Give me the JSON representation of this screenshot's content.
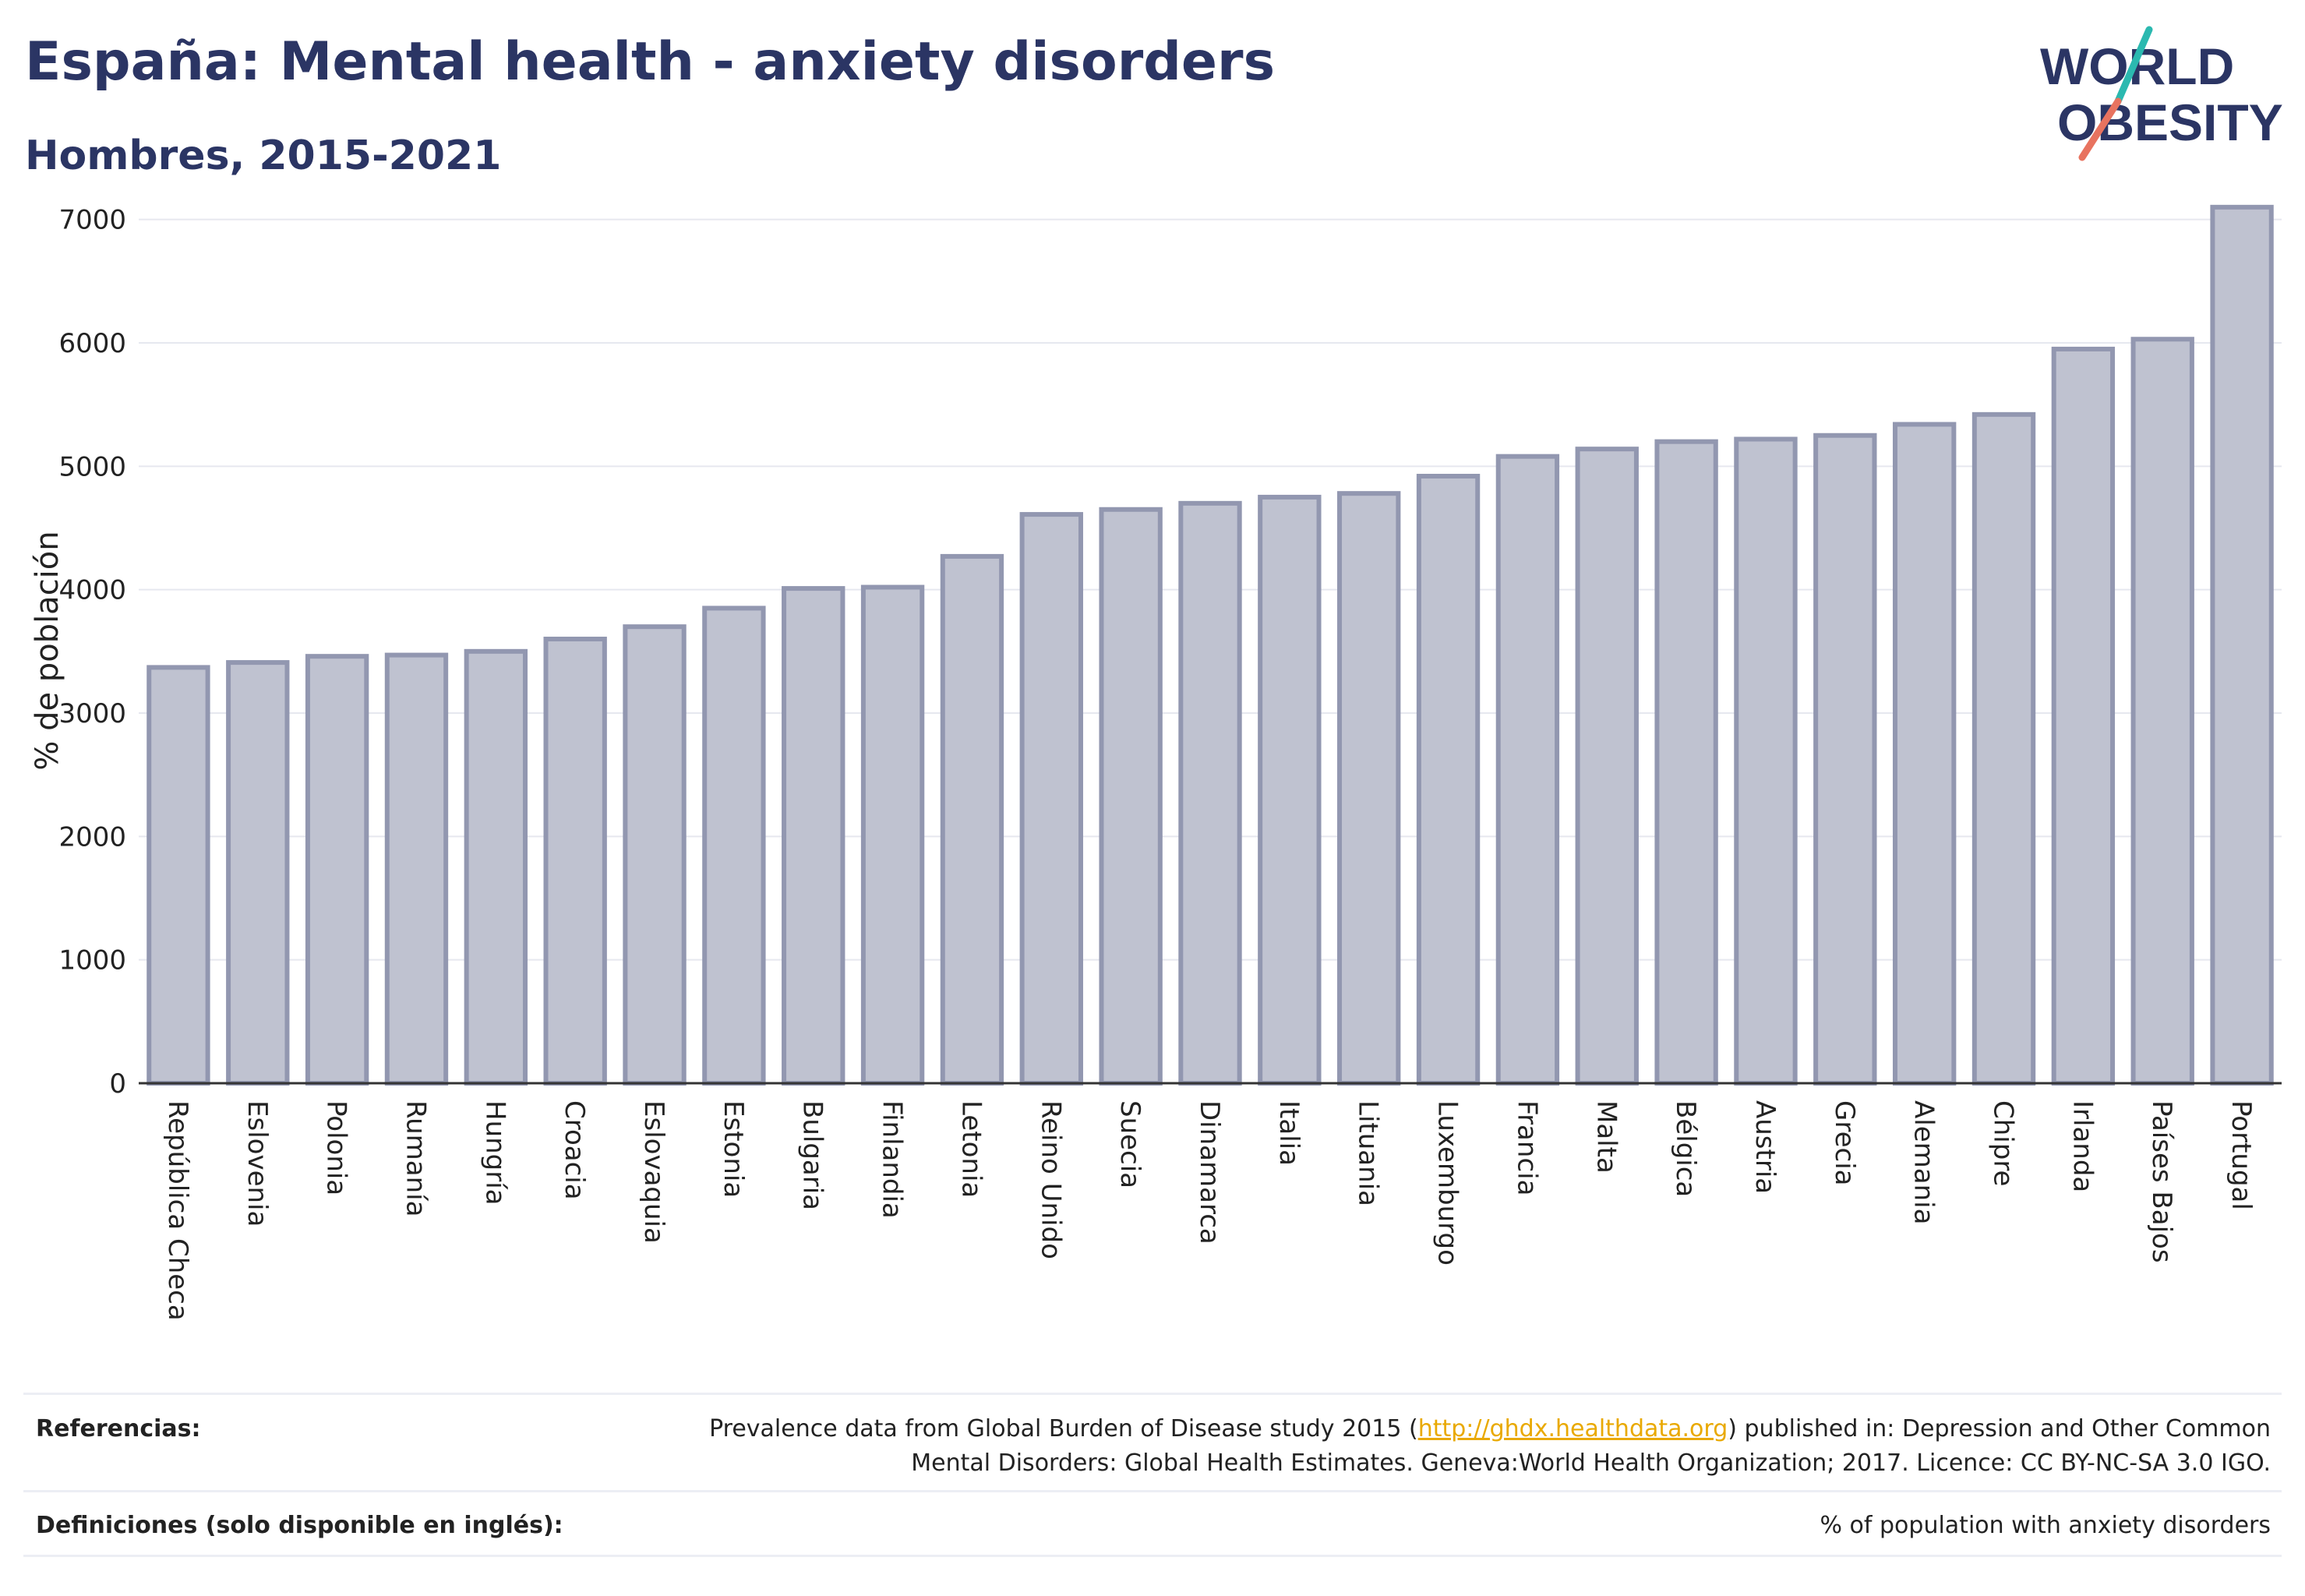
{
  "header": {
    "title": "España: Mental health - anxiety disorders",
    "subtitle": "Hombres, 2015-2021"
  },
  "logo": {
    "line1": "WORLD",
    "line2": "OBESITY",
    "colors": {
      "text": "#2b3564",
      "slash_top": "#2bb9b0",
      "slash_bottom": "#e8735f"
    }
  },
  "colors": {
    "bar_fill": "#bfc2d0",
    "bar_stroke": "#9297b0",
    "grid": "#e6e8ef",
    "axis": "#333333",
    "title": "#2b3564"
  },
  "chart_data": {
    "type": "bar",
    "ylabel": "% de población",
    "ylim": [
      0,
      7200
    ],
    "yticks": [
      0,
      1000,
      2000,
      3000,
      4000,
      5000,
      6000,
      7000
    ],
    "grid": true,
    "categories": [
      "República Checa",
      "Eslovenia",
      "Polonia",
      "Rumanía",
      "Hungría",
      "Croacia",
      "Eslovaquia",
      "Estonia",
      "Bulgaria",
      "Finlandia",
      "Letonia",
      "Reino Unido",
      "Suecia",
      "Dinamarca",
      "Italia",
      "Lituania",
      "Luxemburgo",
      "Francia",
      "Malta",
      "Bélgica",
      "Austria",
      "Grecia",
      "Alemania",
      "Chipre",
      "Irlanda",
      "Países Bajos",
      "Portugal"
    ],
    "values": [
      3370,
      3410,
      3460,
      3470,
      3500,
      3600,
      3700,
      3850,
      4010,
      4020,
      4270,
      4610,
      4650,
      4700,
      4750,
      4780,
      4920,
      5080,
      5140,
      5200,
      5220,
      5250,
      5340,
      5420,
      5950,
      6030,
      7100
    ]
  },
  "footer": {
    "references_label": "Referencias:",
    "references_pre": "Prevalence data from Global Burden of Disease study 2015 (",
    "references_link": "http://ghdx.healthdata.org",
    "references_post": ") published in: Depression and Other Common Mental Disorders: Global Health Estimates. Geneva:World Health Organization; 2017. Licence: CC BY-NC-SA 3.0 IGO.",
    "definitions_label": "Definiciones (solo disponible en inglés):",
    "definitions_text": "% of population with anxiety disorders"
  }
}
